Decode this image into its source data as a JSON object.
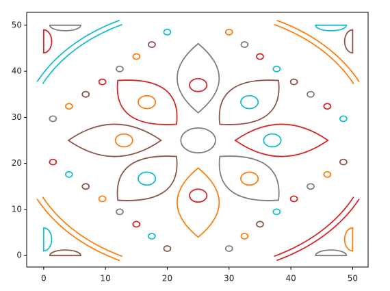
{
  "chart_data": {
    "type": "shapes",
    "xlim": [
      -2.75,
      52.5
    ],
    "ylim": [
      -2.5,
      52.8
    ],
    "xticks": [
      0,
      10,
      20,
      30,
      40,
      50
    ],
    "yticks": [
      0,
      10,
      20,
      30,
      40,
      50
    ],
    "circles": [
      {
        "cx": 25,
        "cy": 25,
        "rx": 2.8,
        "ry": 2.7,
        "color": "#7f7f7f"
      },
      {
        "cx": 25,
        "cy": 37,
        "rx": 1.4,
        "ry": 1.4,
        "color": "#d62728"
      },
      {
        "cx": 25,
        "cy": 13,
        "rx": 1.4,
        "ry": 1.4,
        "color": "#d62728"
      },
      {
        "cx": 13,
        "cy": 25,
        "rx": 1.4,
        "ry": 1.4,
        "color": "#ff7f0e"
      },
      {
        "cx": 37,
        "cy": 25,
        "rx": 1.4,
        "ry": 1.4,
        "color": "#17becf"
      },
      {
        "cx": 16.7,
        "cy": 33.3,
        "rx": 1.4,
        "ry": 1.4,
        "color": "#ff7f0e"
      },
      {
        "cx": 33.3,
        "cy": 33.3,
        "rx": 1.4,
        "ry": 1.4,
        "color": "#17becf"
      },
      {
        "cx": 16.7,
        "cy": 16.7,
        "rx": 1.4,
        "ry": 1.4,
        "color": "#17becf"
      },
      {
        "cx": 33.3,
        "cy": 16.7,
        "rx": 1.4,
        "ry": 1.4,
        "color": "#ff7f0e"
      },
      {
        "cx": 20,
        "cy": 48.5,
        "rx": 0.55,
        "ry": 0.6,
        "color": "#17becf"
      },
      {
        "cx": 30,
        "cy": 48.5,
        "rx": 0.55,
        "ry": 0.6,
        "color": "#ff7f0e"
      },
      {
        "cx": 17.5,
        "cy": 45.8,
        "rx": 0.55,
        "ry": 0.6,
        "color": "#8c564b"
      },
      {
        "cx": 32.5,
        "cy": 45.8,
        "rx": 0.55,
        "ry": 0.6,
        "color": "#7f7f7f"
      },
      {
        "cx": 15,
        "cy": 43.2,
        "rx": 0.55,
        "ry": 0.6,
        "color": "#ff7f0e"
      },
      {
        "cx": 35,
        "cy": 43.2,
        "rx": 0.55,
        "ry": 0.6,
        "color": "#d62728"
      },
      {
        "cx": 12.3,
        "cy": 40.5,
        "rx": 0.55,
        "ry": 0.6,
        "color": "#7f7f7f"
      },
      {
        "cx": 37.7,
        "cy": 40.5,
        "rx": 0.55,
        "ry": 0.6,
        "color": "#17becf"
      },
      {
        "cx": 9.5,
        "cy": 37.7,
        "rx": 0.55,
        "ry": 0.6,
        "color": "#d62728"
      },
      {
        "cx": 40.5,
        "cy": 37.7,
        "rx": 0.55,
        "ry": 0.6,
        "color": "#8c564b"
      },
      {
        "cx": 6.8,
        "cy": 35,
        "rx": 0.55,
        "ry": 0.6,
        "color": "#8c564b"
      },
      {
        "cx": 43.2,
        "cy": 35,
        "rx": 0.55,
        "ry": 0.6,
        "color": "#7f7f7f"
      },
      {
        "cx": 4.1,
        "cy": 32.4,
        "rx": 0.55,
        "ry": 0.6,
        "color": "#ff7f0e"
      },
      {
        "cx": 45.9,
        "cy": 32.4,
        "rx": 0.55,
        "ry": 0.6,
        "color": "#d62728"
      },
      {
        "cx": 1.5,
        "cy": 29.7,
        "rx": 0.55,
        "ry": 0.6,
        "color": "#7f7f7f"
      },
      {
        "cx": 48.5,
        "cy": 29.7,
        "rx": 0.55,
        "ry": 0.6,
        "color": "#17becf"
      },
      {
        "cx": 1.5,
        "cy": 20.3,
        "rx": 0.55,
        "ry": 0.6,
        "color": "#d62728"
      },
      {
        "cx": 48.5,
        "cy": 20.3,
        "rx": 0.55,
        "ry": 0.6,
        "color": "#8c564b"
      },
      {
        "cx": 4.1,
        "cy": 17.6,
        "rx": 0.55,
        "ry": 0.6,
        "color": "#17becf"
      },
      {
        "cx": 45.9,
        "cy": 17.6,
        "rx": 0.55,
        "ry": 0.6,
        "color": "#ff7f0e"
      },
      {
        "cx": 6.8,
        "cy": 15,
        "rx": 0.55,
        "ry": 0.6,
        "color": "#8c564b"
      },
      {
        "cx": 43.2,
        "cy": 15,
        "rx": 0.55,
        "ry": 0.6,
        "color": "#7f7f7f"
      },
      {
        "cx": 9.5,
        "cy": 12.3,
        "rx": 0.55,
        "ry": 0.6,
        "color": "#ff7f0e"
      },
      {
        "cx": 40.5,
        "cy": 12.3,
        "rx": 0.55,
        "ry": 0.6,
        "color": "#d62728"
      },
      {
        "cx": 12.3,
        "cy": 9.5,
        "rx": 0.55,
        "ry": 0.6,
        "color": "#7f7f7f"
      },
      {
        "cx": 37.7,
        "cy": 9.5,
        "rx": 0.55,
        "ry": 0.6,
        "color": "#17becf"
      },
      {
        "cx": 15,
        "cy": 6.8,
        "rx": 0.55,
        "ry": 0.6,
        "color": "#d62728"
      },
      {
        "cx": 35,
        "cy": 6.8,
        "rx": 0.55,
        "ry": 0.6,
        "color": "#8c564b"
      },
      {
        "cx": 17.5,
        "cy": 4.2,
        "rx": 0.55,
        "ry": 0.6,
        "color": "#17becf"
      },
      {
        "cx": 32.5,
        "cy": 4.2,
        "rx": 0.55,
        "ry": 0.6,
        "color": "#ff7f0e"
      },
      {
        "cx": 20,
        "cy": 1.5,
        "rx": 0.55,
        "ry": 0.6,
        "color": "#8c564b"
      },
      {
        "cx": 30,
        "cy": 1.5,
        "rx": 0.55,
        "ry": 0.6,
        "color": "#7f7f7f"
      }
    ],
    "petals": [
      {
        "x1": 25,
        "y1": 31,
        "x2": 25,
        "y2": 46,
        "w": 3.4,
        "color": "#7f7f7f"
      },
      {
        "x1": 25,
        "y1": 4,
        "x2": 25,
        "y2": 19,
        "w": 3.4,
        "color": "#ff7f0e"
      },
      {
        "x1": 4,
        "y1": 25,
        "x2": 19,
        "y2": 25,
        "w": 3.5,
        "color": "#8c564b"
      },
      {
        "x1": 31,
        "y1": 25,
        "x2": 46,
        "y2": 25,
        "w": 3.5,
        "color": "#d62728"
      },
      {
        "x1": 21.5,
        "y1": 28.5,
        "x2": 12,
        "y2": 38,
        "w": 4,
        "color": "#d62728"
      },
      {
        "x1": 28.5,
        "y1": 28.5,
        "x2": 38,
        "y2": 38,
        "w": 4,
        "color": "#8c564b"
      },
      {
        "x1": 21.5,
        "y1": 21.5,
        "x2": 12,
        "y2": 12,
        "w": 4,
        "color": "#8c564b"
      },
      {
        "x1": 28.5,
        "y1": 21.5,
        "x2": 38,
        "y2": 12,
        "w": 4,
        "color": "#7f7f7f"
      }
    ],
    "arcs": [
      {
        "cx": 25,
        "cy": 25,
        "r": 28,
        "t1": 116,
        "t2": 154,
        "color": "#17becf"
      },
      {
        "cx": 25,
        "cy": 25,
        "r": 29,
        "t1": 116,
        "t2": 154,
        "color": "#17becf"
      },
      {
        "cx": 25,
        "cy": 25,
        "r": 28,
        "t1": 26,
        "t2": 64,
        "color": "#ff7f0e"
      },
      {
        "cx": 25,
        "cy": 25,
        "r": 29,
        "t1": 26,
        "t2": 64,
        "color": "#ff7f0e"
      },
      {
        "cx": 25,
        "cy": 25,
        "r": 28,
        "t1": 206,
        "t2": 244,
        "color": "#ff7f0e"
      },
      {
        "cx": 25,
        "cy": 25,
        "r": 29,
        "t1": 206,
        "t2": 244,
        "color": "#ff7f0e"
      },
      {
        "cx": 25,
        "cy": 25,
        "r": 28,
        "t1": 296,
        "t2": 334,
        "color": "#d62728"
      },
      {
        "cx": 25,
        "cy": 25,
        "r": 29,
        "t1": 296,
        "t2": 334,
        "color": "#d62728"
      }
    ],
    "halves": [
      {
        "cx": 3.5,
        "cy": 50,
        "rx": 2.5,
        "ry": 1.2,
        "side": "down",
        "color": "#7f7f7f"
      },
      {
        "cx": 0,
        "cy": 46.5,
        "rx": 1.3,
        "ry": 2.5,
        "side": "right",
        "color": "#d62728"
      },
      {
        "cx": 46.5,
        "cy": 50,
        "rx": 2.5,
        "ry": 1.2,
        "side": "down",
        "color": "#17becf"
      },
      {
        "cx": 50,
        "cy": 46.5,
        "rx": 1.3,
        "ry": 2.5,
        "side": "left",
        "color": "#8c564b"
      },
      {
        "cx": 0,
        "cy": 3.5,
        "rx": 1.3,
        "ry": 2.5,
        "side": "right",
        "color": "#17becf"
      },
      {
        "cx": 3.5,
        "cy": 0,
        "rx": 2.5,
        "ry": 1.2,
        "side": "up",
        "color": "#8c564b"
      },
      {
        "cx": 46.5,
        "cy": 0,
        "rx": 2.5,
        "ry": 1.2,
        "side": "up",
        "color": "#7f7f7f"
      },
      {
        "cx": 50,
        "cy": 3.5,
        "rx": 1.3,
        "ry": 2.5,
        "side": "left",
        "color": "#ff7f0e"
      }
    ]
  }
}
